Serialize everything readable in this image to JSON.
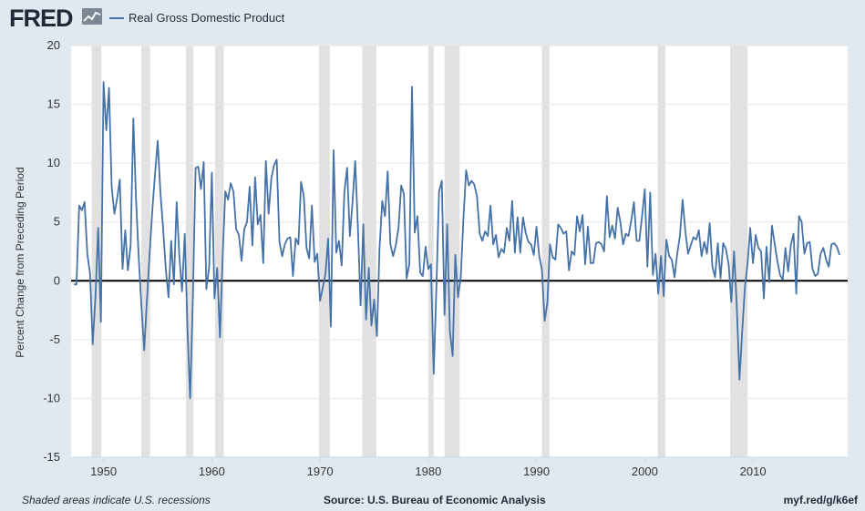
{
  "header": {
    "logo_text": "FRED",
    "logo_mark_icon": "trend-line-icon",
    "legend_label": "Real Gross Domestic Product"
  },
  "colors": {
    "series": "#4572a7",
    "recession": "#e1e1e1",
    "background": "#e1e9f0",
    "plot": "#ffffff",
    "zero_line": "#000000"
  },
  "footer": {
    "note": "Shaded areas indicate U.S. recessions",
    "source": "Source: U.S. Bureau of Economic Analysis",
    "link": "myf.red/g/k6ef"
  },
  "chart_data": {
    "type": "line",
    "title": "Real Gross Domestic Product",
    "xlabel": "",
    "ylabel": "Percent Change from Preceding Period",
    "ylim": [
      -15,
      20
    ],
    "xlim": [
      1947.0,
      2018.75
    ],
    "yticks": [
      -15,
      -10,
      -5,
      0,
      5,
      10,
      15,
      20
    ],
    "xticks": [
      1950,
      1960,
      1970,
      1980,
      1990,
      2000,
      2010
    ],
    "grid": true,
    "legend": "top-left",
    "recessions": [
      [
        1948.9,
        1949.8
      ],
      [
        1953.5,
        1954.3
      ],
      [
        1957.6,
        1958.3
      ],
      [
        1960.3,
        1961.1
      ],
      [
        1969.9,
        1970.9
      ],
      [
        1973.9,
        1975.2
      ],
      [
        1980.0,
        1980.5
      ],
      [
        1981.5,
        1982.9
      ],
      [
        1990.5,
        1991.2
      ],
      [
        2001.2,
        2001.9
      ],
      [
        2007.9,
        2009.5
      ]
    ],
    "series": [
      {
        "name": "Real Gross Domestic Product",
        "units": "Percent Change from Preceding Period",
        "x_start": 1947.25,
        "x_step": 0.25,
        "values": [
          -0.3,
          -0.3,
          6.4,
          6.0,
          6.7,
          2.3,
          0.6,
          -5.4,
          -1.4,
          4.5,
          -3.5,
          16.9,
          12.8,
          16.4,
          8.0,
          5.7,
          7.0,
          8.6,
          1.0,
          4.3,
          0.9,
          3.0,
          13.8,
          7.0,
          2.0,
          -2.2,
          -5.9,
          -1.8,
          2.2,
          6.0,
          9.0,
          11.9,
          7.5,
          4.5,
          1.0,
          -1.4,
          3.4,
          -0.3,
          6.7,
          2.2,
          -0.9,
          4.0,
          -4.1,
          -10.0,
          -1.5,
          9.6,
          9.7,
          7.8,
          10.1,
          -0.7,
          1.1,
          9.2,
          -1.5,
          1.1,
          -4.8,
          1.9,
          7.6,
          6.9,
          8.3,
          7.6,
          4.4,
          3.9,
          1.7,
          4.4,
          5.0,
          8.0,
          3.0,
          8.8,
          4.8,
          5.6,
          1.5,
          10.2,
          5.7,
          8.7,
          9.8,
          10.3,
          3.3,
          2.1,
          3.1,
          3.6,
          3.7,
          0.4,
          3.6,
          3.1,
          8.4,
          7.2,
          2.8,
          1.9,
          6.4,
          1.6,
          2.3,
          -1.7,
          -0.6,
          0.6,
          3.6,
          -3.9,
          11.1,
          2.4,
          3.4,
          1.3,
          7.5,
          9.6,
          3.8,
          6.6,
          10.2,
          4.5,
          -2.1,
          4.8,
          -3.3,
          1.1,
          -3.8,
          -1.6,
          -4.7,
          2.8,
          6.8,
          5.5,
          9.3,
          3.1,
          2.1,
          3.0,
          4.5,
          8.1,
          7.4,
          0.2,
          1.4,
          16.5,
          4.1,
          5.5,
          0.7,
          0.4,
          2.9,
          1.0,
          1.4,
          -7.9,
          -0.5,
          7.6,
          8.5,
          -2.9,
          4.8,
          -4.3,
          -6.4,
          2.2,
          -1.4,
          0.3,
          5.4,
          9.4,
          8.1,
          8.5,
          8.2,
          7.2,
          4.0,
          3.4,
          4.2,
          3.8,
          6.4,
          3.1,
          3.9,
          2.0,
          2.7,
          2.4,
          4.5,
          3.4,
          6.8,
          2.4,
          5.4,
          2.4,
          5.4,
          4.1,
          3.3,
          3.1,
          2.2,
          4.6,
          2.1,
          1.0,
          -3.4,
          -1.9,
          3.1,
          2.0,
          1.8,
          4.8,
          4.5,
          4.0,
          4.2,
          0.9,
          2.5,
          2.2,
          5.5,
          4.2,
          5.6,
          1.4,
          4.6,
          1.5,
          1.5,
          3.2,
          3.3,
          3.1,
          2.5,
          7.2,
          3.7,
          4.7,
          3.6,
          6.2,
          5.0,
          3.1,
          4.0,
          3.8,
          5.1,
          6.7,
          3.4,
          3.4,
          5.5,
          7.8,
          1.2,
          7.5,
          0.5,
          2.3,
          -1.1,
          2.1,
          -1.3,
          3.5,
          2.1,
          1.8,
          0.3,
          2.3,
          3.8,
          6.9,
          4.2,
          2.3,
          3.0,
          3.7,
          3.5,
          4.3,
          2.1,
          3.3,
          2.3,
          4.9,
          1.2,
          0.3,
          3.2,
          0.2,
          3.2,
          2.7,
          1.4,
          -1.8,
          2.5,
          -2.1,
          -8.4,
          -4.4,
          -0.6,
          1.5,
          4.5,
          1.5,
          3.9,
          2.8,
          2.5,
          -1.5,
          2.9,
          -0.1,
          4.7,
          3.2,
          1.7,
          0.5,
          0.1,
          2.8,
          0.8,
          3.1,
          4.0,
          -1.1,
          5.5,
          5.0,
          2.3,
          3.2,
          3.3,
          1.0,
          0.4,
          0.6,
          2.3,
          2.8,
          1.8,
          1.2,
          3.1,
          3.2,
          2.9,
          2.2
        ]
      }
    ]
  }
}
